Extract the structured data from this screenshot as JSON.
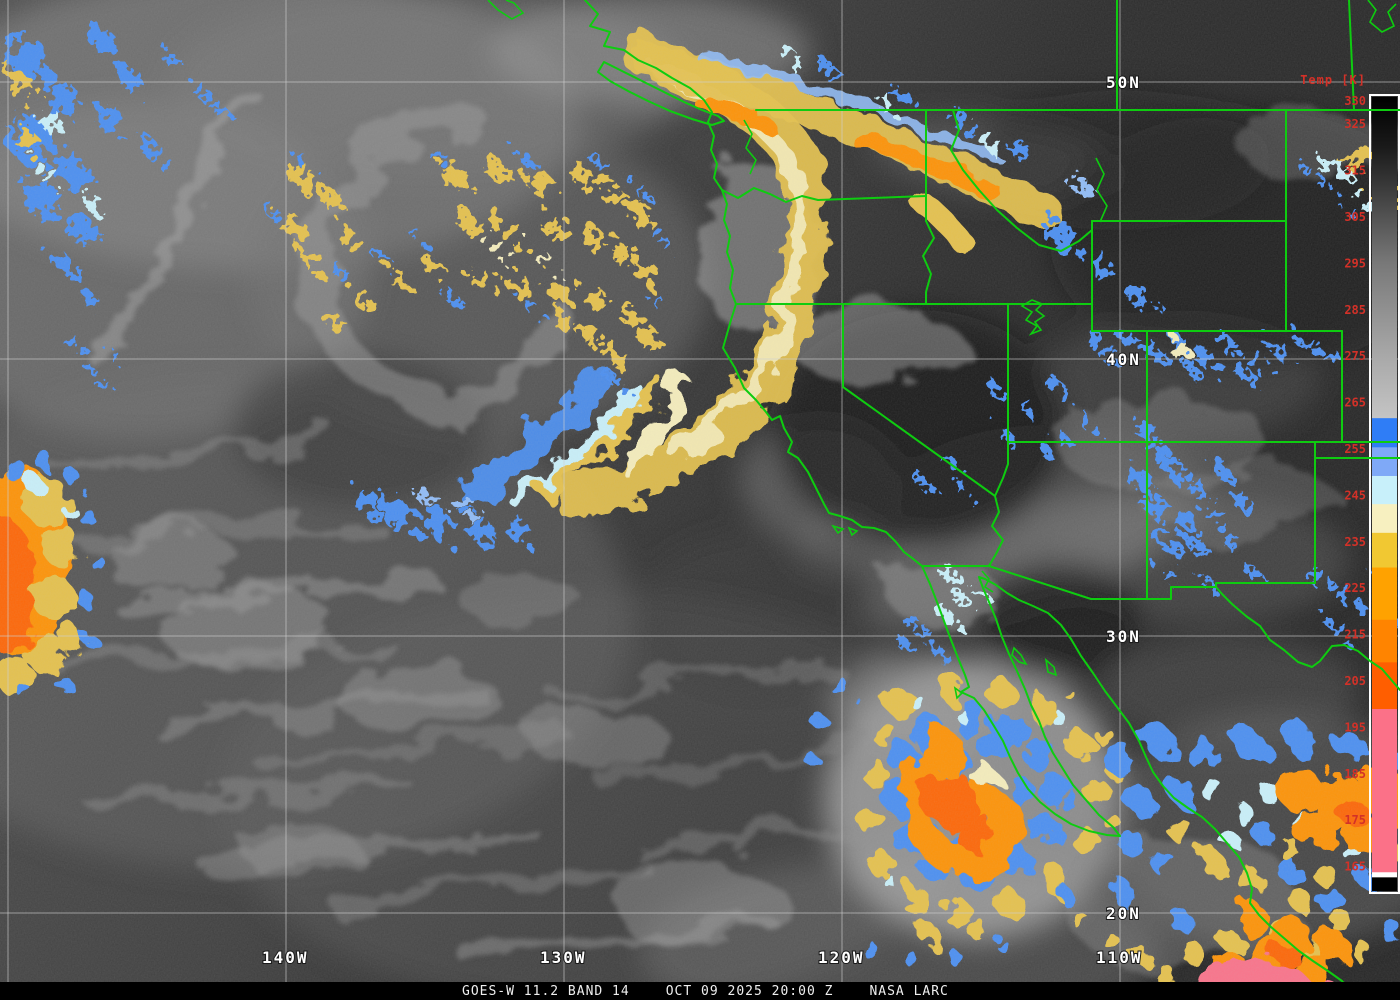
{
  "caption": {
    "left": "GOES-W 11.2 BAND 14",
    "center": "OCT 09 2025 20:00 Z",
    "right": "NASA LARC"
  },
  "colorbar": {
    "title": "Temp [K]",
    "tick_values": [
      330,
      325,
      315,
      305,
      295,
      285,
      275,
      265,
      255,
      245,
      235,
      225,
      215,
      205,
      195,
      185,
      175,
      165
    ],
    "stops": [
      {
        "temp": 330.9,
        "color": "#000000"
      },
      {
        "temp": 320.0,
        "color": "#1a1a1a"
      },
      {
        "temp": 295.0,
        "color": "#787878"
      },
      {
        "temp": 275.0,
        "color": "#a8a8a8"
      },
      {
        "temp": 261.5,
        "color": "#c4c4c4"
      },
      {
        "temp": 261.4,
        "color": "#2f7df6"
      },
      {
        "temp": 255.2,
        "color": "#2f7df6"
      },
      {
        "temp": 255.1,
        "color": "#7fa9f7"
      },
      {
        "temp": 249.0,
        "color": "#7fa9f7"
      },
      {
        "temp": 248.9,
        "color": "#c8f0fa"
      },
      {
        "temp": 242.9,
        "color": "#c8f0fa"
      },
      {
        "temp": 242.8,
        "color": "#f7f0c0"
      },
      {
        "temp": 236.7,
        "color": "#f7f0c0"
      },
      {
        "temp": 236.6,
        "color": "#f1c832"
      },
      {
        "temp": 229.2,
        "color": "#f1c832"
      },
      {
        "temp": 229.1,
        "color": "#ffa200"
      },
      {
        "temp": 217.9,
        "color": "#ffa200"
      },
      {
        "temp": 217.8,
        "color": "#ff8400"
      },
      {
        "temp": 208.7,
        "color": "#ff8400"
      },
      {
        "temp": 208.6,
        "color": "#ff5e00"
      },
      {
        "temp": 198.6,
        "color": "#ff5e00"
      },
      {
        "temp": 198.5,
        "color": "#fb7188"
      },
      {
        "temp": 163.3,
        "color": "#fb7188"
      },
      {
        "temp": 163.2,
        "color": "#ffffff"
      },
      {
        "temp": 162.2,
        "color": "#ffffff"
      },
      {
        "temp": 162.1,
        "color": "#000000"
      },
      {
        "temp": 159.2,
        "color": "#000000"
      }
    ]
  },
  "grid": {
    "lat_labels": [
      {
        "value": 50,
        "text": "50N"
      },
      {
        "value": 40,
        "text": "40N"
      },
      {
        "value": 30,
        "text": "30N"
      },
      {
        "value": 20,
        "text": "20N"
      }
    ],
    "lon_labels": [
      {
        "value": 140,
        "text": "140W"
      },
      {
        "value": 130,
        "text": "130W"
      },
      {
        "value": 120,
        "text": "120W"
      },
      {
        "value": 110,
        "text": "110W"
      }
    ],
    "unlabeled_lon_lines": [
      150
    ]
  },
  "colors": {
    "map_outline": "#0ecc10",
    "grid_line": "#cfcfcf",
    "scale_text": "#d33128",
    "grid_label_text": "#ffffff",
    "caption_text": "#efefef",
    "caption_background": "#000000"
  }
}
